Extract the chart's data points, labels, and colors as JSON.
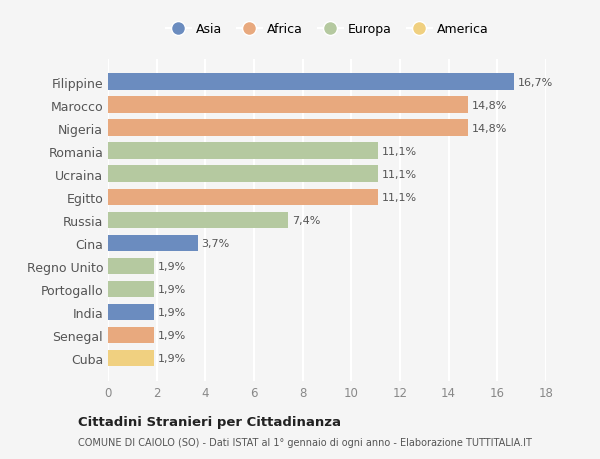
{
  "categories": [
    "Filippine",
    "Marocco",
    "Nigeria",
    "Romania",
    "Ucraina",
    "Egitto",
    "Russia",
    "Cina",
    "Regno Unito",
    "Portogallo",
    "India",
    "Senegal",
    "Cuba"
  ],
  "values": [
    16.7,
    14.8,
    14.8,
    11.1,
    11.1,
    11.1,
    7.4,
    3.7,
    1.9,
    1.9,
    1.9,
    1.9,
    1.9
  ],
  "labels": [
    "16,7%",
    "14,8%",
    "14,8%",
    "11,1%",
    "11,1%",
    "11,1%",
    "7,4%",
    "3,7%",
    "1,9%",
    "1,9%",
    "1,9%",
    "1,9%",
    "1,9%"
  ],
  "colors": [
    "#6b8cbf",
    "#e8a97e",
    "#e8a97e",
    "#b5c9a0",
    "#b5c9a0",
    "#e8a97e",
    "#b5c9a0",
    "#6b8cbf",
    "#b5c9a0",
    "#b5c9a0",
    "#6b8cbf",
    "#e8a97e",
    "#f0d080"
  ],
  "legend_labels": [
    "Asia",
    "Africa",
    "Europa",
    "America"
  ],
  "legend_colors": [
    "#6b8cbf",
    "#e8a97e",
    "#b5c9a0",
    "#f0d080"
  ],
  "title": "Cittadini Stranieri per Cittadinanza",
  "subtitle": "COMUNE DI CAIOLO (SO) - Dati ISTAT al 1° gennaio di ogni anno - Elaborazione TUTTITALIA.IT",
  "xlim": [
    0,
    18
  ],
  "xticks": [
    0,
    2,
    4,
    6,
    8,
    10,
    12,
    14,
    16,
    18
  ],
  "background_color": "#f5f5f5",
  "grid_color": "#ffffff",
  "bar_height": 0.72
}
